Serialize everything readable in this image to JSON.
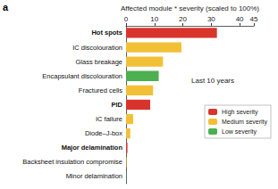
{
  "chart_data": {
    "type": "bar",
    "orientation": "horizontal",
    "stacked": true,
    "xlabel": "Affected module * severity (scaled to 100%)",
    "annotations": [
      "a",
      "Last 10 years"
    ],
    "categories": [
      "Hot spots",
      "IC discolouration",
      "Glass breakage",
      "Encapsulant discolouration",
      "Fractured cells",
      "PID",
      "IC failure",
      "Diode–J-box",
      "Major delamination",
      "Backsheet insulation compromise",
      "Minor delamination"
    ],
    "series": [
      {
        "name": "High severity",
        "color": "#d9342b",
        "values": [
          32,
          null,
          null,
          null,
          null,
          8.5,
          null,
          null,
          0.5,
          null,
          null
        ]
      },
      {
        "name": "Medium severity",
        "color": "#f2c037",
        "values": [
          null,
          19.5,
          13,
          null,
          9.5,
          null,
          2.5,
          1.5,
          null,
          0.2,
          null
        ]
      },
      {
        "name": "Low severity",
        "color": "#4caf50",
        "values": [
          null,
          null,
          null,
          11.5,
          null,
          null,
          null,
          null,
          null,
          null,
          0.1
        ]
      }
    ],
    "xlim": [
      0,
      45
    ],
    "xticks": [
      0,
      10,
      20,
      30,
      40
    ],
    "legend": "right",
    "grid": false
  }
}
